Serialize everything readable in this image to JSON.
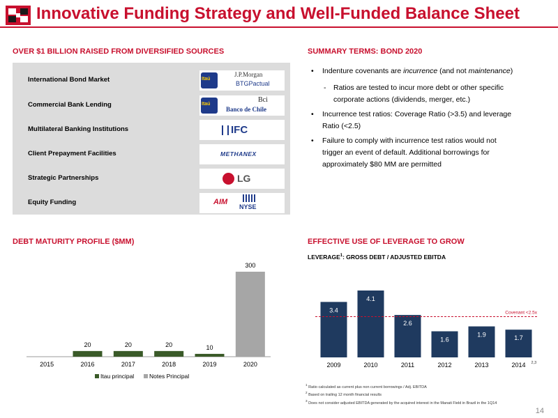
{
  "header": {
    "title": "Innovative Funding Strategy and Well-Funded Balance Sheet"
  },
  "funding": {
    "heading": "OVER $1 BILLION RAISED FROM DIVERSIFIED SOURCES",
    "rows": [
      {
        "label": "International Bond Market",
        "logos": [
          "Itaú",
          "J.P.Morgan",
          "BTGPactual"
        ]
      },
      {
        "label": "Commercial Bank Lending",
        "logos": [
          "Itaú",
          "Bci",
          "Banco de Chile"
        ]
      },
      {
        "label": "Multilateral Banking Institutions",
        "logos": [
          "IFC"
        ]
      },
      {
        "label": "Client Prepayment Facilities",
        "logos": [
          "METHANEX"
        ]
      },
      {
        "label": "Strategic Partnerships",
        "logos": [
          "LG"
        ]
      },
      {
        "label": "Equity Funding",
        "logos": [
          "AIM",
          "NYSE"
        ]
      }
    ]
  },
  "terms": {
    "heading": "SUMMARY TERMS: BOND 2020",
    "b1_pre": "Indenture covenants are ",
    "b1_em1": "incurrence",
    "b1_mid": " (and not ",
    "b1_em2": "maintenance",
    "b1_post": ")",
    "sub1_line1": "Ratios are tested to incur more debt or other specific",
    "sub1_line2": "corporate actions (dividends, merger, etc.)",
    "b2_line1": "Incurrence test ratios: Coverage Ratio (>3.5) and leverage",
    "b2_line2": "Ratio (<2.5)",
    "b3_line1": "Failure to comply with incurrence test ratios would not",
    "b3_line2": "trigger an event of default. Additional borrowings for",
    "b3_line3": "approximately $80 MM are permitted"
  },
  "debt": {
    "heading": "DEBT MATURITY PROFILE ($MM)",
    "chart_data": {
      "type": "bar",
      "categories": [
        "2015",
        "2016",
        "2017",
        "2018",
        "2019",
        "2020"
      ],
      "series": [
        {
          "name": "Itau principal",
          "values": [
            0,
            20,
            20,
            20,
            10,
            0
          ],
          "color": "#3a5a28"
        },
        {
          "name": "Notes Principal",
          "values": [
            0,
            0,
            0,
            0,
            0,
            300
          ],
          "color": "#a6a6a6"
        }
      ],
      "data_labels": [
        "",
        "20",
        "20",
        "20",
        "10",
        "300"
      ],
      "ylim": [
        0,
        300
      ],
      "legend": "bottom"
    }
  },
  "leverage": {
    "heading": "EFFECTIVE USE OF LEVERAGE TO GROW",
    "subheading": "LEVERAGE",
    "subheading_sup": "1",
    "subheading_rest": ": GROSS DEBT / ADJUSTED EBITDA",
    "chart_data": {
      "type": "bar",
      "categories": [
        "2009",
        "2010",
        "2011",
        "2012",
        "2013",
        "2014"
      ],
      "values": [
        3.4,
        4.1,
        2.6,
        1.6,
        1.9,
        1.7
      ],
      "data_labels": [
        "3.4",
        "4.1",
        "2.6",
        "1.6",
        "1.9",
        "1.7"
      ],
      "category_superscripts": [
        "",
        "",
        "",
        "",
        "",
        "2,3"
      ],
      "covenant": {
        "label": "Covenant <2.5x",
        "value": 2.5
      },
      "ylim": [
        0,
        4.1
      ],
      "bar_color": "#1f3a5f"
    }
  },
  "footnotes": [
    "Ratio calculated as current plus non current borrowings / Adj. EBITDA",
    "Based on trailing 12 month financial results",
    "Does not consider adjusted EBITDA generated by the acquired interest in the Manati Field in Brazil in the 1Q14"
  ],
  "footnote_marks": [
    "1",
    "2",
    "3"
  ],
  "page_number": "14"
}
